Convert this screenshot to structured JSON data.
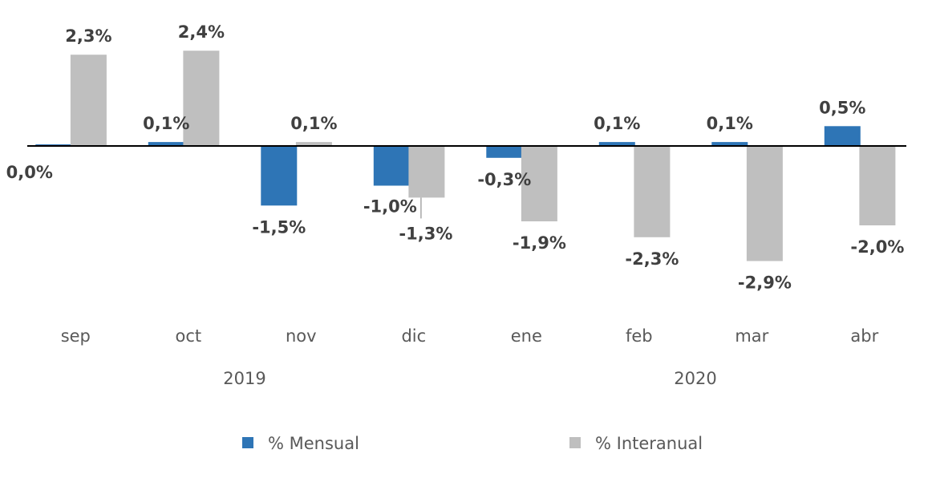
{
  "chart_data": {
    "type": "bar",
    "title": "",
    "xlabel": "",
    "ylabel": "",
    "categories": [
      "sep",
      "oct",
      "nov",
      "dic",
      "ene",
      "feb",
      "mar",
      "abr"
    ],
    "groups": [
      {
        "label": "2019",
        "categories": [
          "sep",
          "oct",
          "nov",
          "dic"
        ]
      },
      {
        "label": "2020",
        "categories": [
          "ene",
          "feb",
          "mar",
          "abr"
        ]
      }
    ],
    "series": [
      {
        "name": "% Mensual",
        "color": "#2E75B6",
        "values": [
          0.0,
          0.1,
          -1.5,
          -1.0,
          -0.3,
          0.1,
          0.1,
          0.5
        ],
        "labels": [
          "0,0%",
          "0,1%",
          "-1,5%",
          "-1,0%",
          "-0,3%",
          "0,1%",
          "0,1%",
          "0,5%"
        ]
      },
      {
        "name": "% Interanual",
        "color": "#BFBFBF",
        "values": [
          2.3,
          2.4,
          0.1,
          -1.3,
          -1.9,
          -2.3,
          -2.9,
          -2.0
        ],
        "labels": [
          "2,3%",
          "2,4%",
          "0,1%",
          "-1,3%",
          "-1,9%",
          "-2,3%",
          "-2,9%",
          "-2,0%"
        ]
      }
    ],
    "ylim": [
      -3.2,
      2.7
    ],
    "grid": false,
    "legend_position": "bottom"
  }
}
